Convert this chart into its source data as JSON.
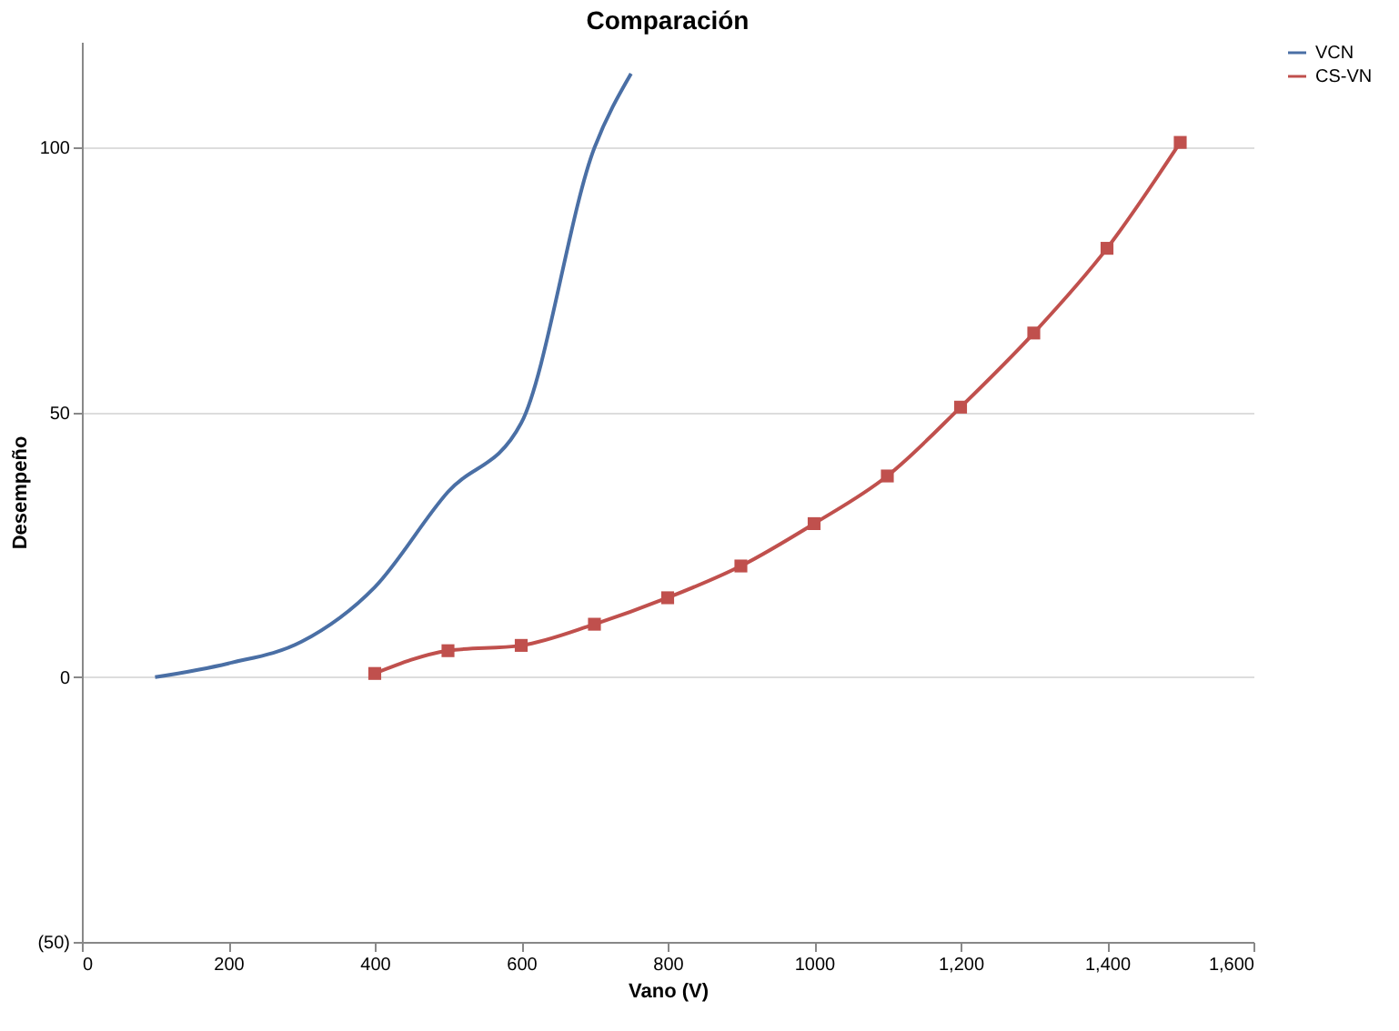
{
  "chart_data": {
    "type": "line",
    "title": "Comparación",
    "xlabel": "Vano (V)",
    "ylabel": "Desempeño",
    "xlim": [
      0,
      1600
    ],
    "xticks": [
      0,
      200,
      400,
      600,
      800,
      1000,
      {
        "value": 1200,
        "label": "1,200"
      },
      {
        "value": 1400,
        "label": "1,400"
      },
      {
        "value": 1600,
        "label": "1,600"
      }
    ],
    "ylim": [
      -50,
      120
    ],
    "yticks": [
      {
        "value": -50,
        "label": "(50)"
      },
      0,
      50,
      100
    ],
    "grid": "y",
    "legend": "right",
    "series": [
      {
        "name": "VCN",
        "color": "#4a6fa5",
        "marker": "none",
        "x": [
          100,
          200,
          300,
          400,
          500,
          600,
          700,
          750
        ],
        "values": [
          0,
          2.6,
          6.7,
          17,
          35,
          48,
          100,
          114
        ]
      },
      {
        "name": "CS-VN",
        "color": "#c0504d",
        "marker": "square",
        "x": [
          400,
          500,
          600,
          700,
          800,
          900,
          1000,
          1100,
          1200,
          1300,
          1400,
          1500
        ],
        "values": [
          0.7,
          5,
          6,
          10,
          15,
          21,
          29,
          38,
          51,
          65,
          81,
          101
        ]
      }
    ]
  }
}
